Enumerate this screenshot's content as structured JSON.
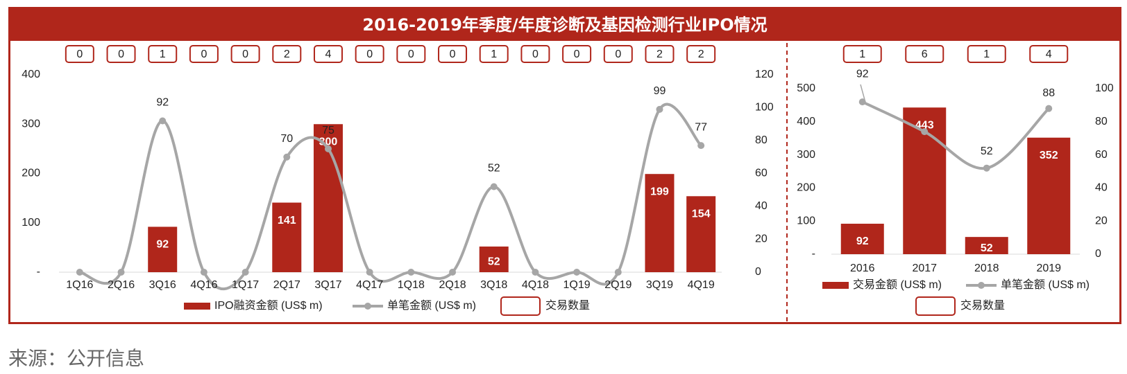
{
  "title": "2016-2019年季度/年度诊断及基因检测行业IPO情况",
  "source": "来源：公开信息",
  "colors": {
    "bar": "#b0261b",
    "line": "#a6a6a6",
    "frame": "#b0261b",
    "text": "#222222"
  },
  "chart_data": [
    {
      "type": "bar",
      "categories": [
        "1Q16",
        "2Q16",
        "3Q16",
        "4Q16",
        "1Q17",
        "2Q17",
        "3Q17",
        "4Q17",
        "1Q18",
        "2Q18",
        "3Q18",
        "4Q18",
        "1Q19",
        "2Q19",
        "3Q19",
        "4Q19"
      ],
      "series": [
        {
          "name": "IPO融资金额 (US$ m)",
          "type": "bar",
          "axis": "left",
          "values": [
            0,
            0,
            92,
            0,
            0,
            141,
            300,
            0,
            0,
            0,
            52,
            0,
            0,
            0,
            199,
            154
          ]
        },
        {
          "name": "单笔金额 (US$ m)",
          "type": "line",
          "axis": "right",
          "values": [
            0,
            0,
            92,
            0,
            0,
            70,
            75,
            0,
            0,
            0,
            52,
            0,
            0,
            0,
            99,
            77
          ]
        }
      ],
      "counts": [
        0,
        0,
        1,
        0,
        0,
        2,
        4,
        0,
        0,
        0,
        1,
        0,
        0,
        0,
        2,
        2
      ],
      "count_legend": "交易数量",
      "left_ticks": [
        "-",
        "100",
        "200",
        "300",
        "400"
      ],
      "left_range": [
        0,
        400
      ],
      "right_ticks": [
        "0",
        "20",
        "40",
        "60",
        "80",
        "100",
        "120"
      ],
      "right_range": [
        0,
        120
      ],
      "legend_position": "bottom"
    },
    {
      "type": "bar",
      "categories": [
        "2016",
        "2017",
        "2018",
        "2019"
      ],
      "series": [
        {
          "name": "交易金额 (US$ m)",
          "type": "bar",
          "axis": "left",
          "values": [
            92,
            443,
            52,
            352
          ]
        },
        {
          "name": "单笔金额 (US$ m)",
          "type": "line",
          "axis": "right",
          "values": [
            92,
            74,
            52,
            88
          ]
        }
      ],
      "bar_labels": [
        "92",
        "443",
        "52",
        "352"
      ],
      "line_labels": [
        "92",
        "",
        "52",
        "88"
      ],
      "counts": [
        1,
        6,
        1,
        4
      ],
      "count_legend": "交易数量",
      "left_ticks": [
        "-",
        "100",
        "200",
        "300",
        "400",
        "500"
      ],
      "left_range": [
        0,
        500
      ],
      "right_ticks": [
        "0",
        "20",
        "40",
        "60",
        "80",
        "100"
      ],
      "right_range": [
        0,
        100
      ],
      "legend_position": "bottom"
    }
  ]
}
